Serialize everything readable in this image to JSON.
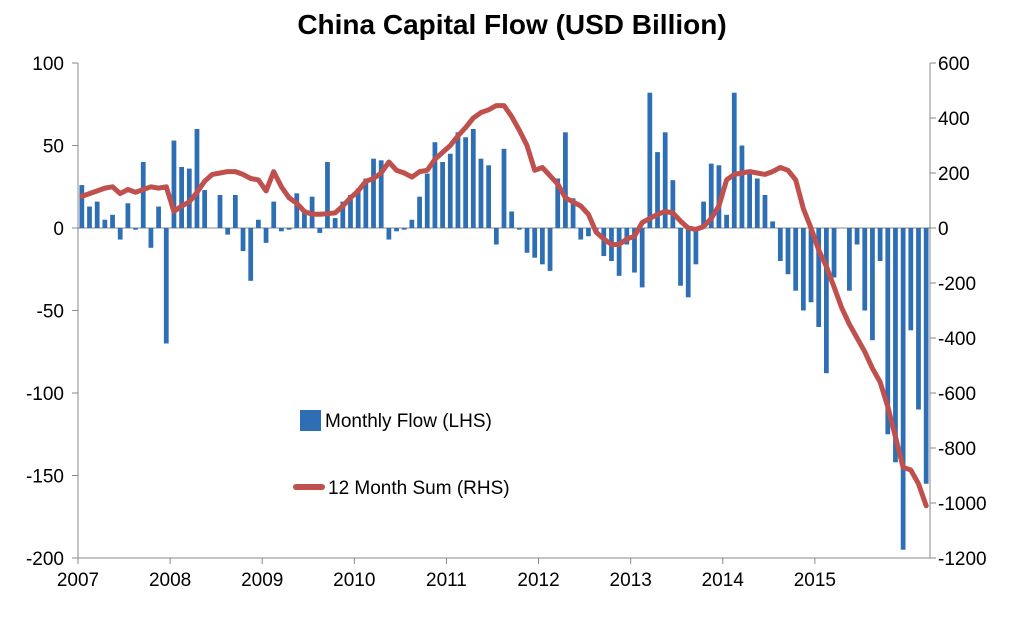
{
  "chart_data": {
    "type": "bar+line",
    "title": "China Capital Flow (USD Billion)",
    "x_labels": [
      "2007",
      "2008",
      "2009",
      "2010",
      "2011",
      "2012",
      "2013",
      "2014",
      "2015"
    ],
    "y_left": {
      "min": -200,
      "max": 100,
      "ticks": [
        "100",
        "50",
        "0",
        "-50",
        "-100",
        "-150",
        "-200"
      ],
      "tick_values": [
        100,
        50,
        0,
        -50,
        -100,
        -150,
        -200
      ]
    },
    "y_right": {
      "min": -1200,
      "max": 600,
      "ticks": [
        "600",
        "400",
        "200",
        "0",
        "-200",
        "-400",
        "-600",
        "-800",
        "-1000",
        "-1200"
      ],
      "tick_values": [
        600,
        400,
        200,
        0,
        -200,
        -400,
        -600,
        -800,
        -1000,
        -1200
      ]
    },
    "series": [
      {
        "name": "Monthly Flow (LHS)",
        "type": "bar",
        "axis": "left",
        "color": "#2E6EB5",
        "values": [
          26,
          13,
          16,
          5,
          8,
          -7,
          15,
          -1,
          40,
          -12,
          13,
          -70,
          53,
          37,
          36,
          60,
          23,
          0,
          20,
          -4,
          20,
          -14,
          -32,
          5,
          -9,
          16,
          -2,
          -1,
          21,
          10,
          19,
          -3,
          40,
          6,
          16,
          20,
          24,
          30,
          42,
          41,
          -7,
          -2,
          -1,
          5,
          19,
          33,
          52,
          40,
          45,
          58,
          55,
          60,
          42,
          38,
          -10,
          48,
          10,
          -1,
          -15,
          -18,
          -22,
          -26,
          30,
          58,
          18,
          -7,
          -5,
          -3,
          -17,
          -20,
          -29,
          -10,
          -27,
          -36,
          82,
          46,
          58,
          29,
          -35,
          -42,
          -22,
          16,
          39,
          38,
          8,
          82,
          50,
          34,
          30,
          20,
          4,
          -20,
          -28,
          -38,
          -50,
          -45,
          -60,
          -88,
          -30,
          0,
          -38,
          -10,
          -50,
          -68,
          -20,
          -125,
          -142,
          -195,
          -62,
          -110,
          -155
        ]
      },
      {
        "name": "12 Month Sum (RHS)",
        "type": "line",
        "axis": "right",
        "color": "#C0504D",
        "values": [
          115,
          125,
          135,
          145,
          150,
          125,
          140,
          130,
          140,
          150,
          145,
          150,
          60,
          80,
          95,
          130,
          170,
          195,
          200,
          205,
          205,
          195,
          180,
          175,
          135,
          205,
          150,
          110,
          90,
          60,
          50,
          50,
          52,
          55,
          80,
          110,
          135,
          170,
          180,
          200,
          240,
          210,
          200,
          185,
          205,
          210,
          250,
          275,
          300,
          335,
          365,
          400,
          420,
          430,
          445,
          445,
          405,
          355,
          300,
          210,
          220,
          190,
          160,
          110,
          95,
          80,
          50,
          -15,
          -40,
          -60,
          -60,
          -40,
          -30,
          20,
          35,
          50,
          60,
          55,
          25,
          0,
          -5,
          5,
          35,
          80,
          175,
          195,
          200,
          205,
          200,
          195,
          205,
          220,
          210,
          175,
          70,
          0,
          -80,
          -140,
          -215,
          -290,
          -350,
          -400,
          -450,
          -510,
          -560,
          -650,
          -760,
          -870,
          -880,
          -930,
          -1010
        ]
      }
    ],
    "legend": {
      "position": "center-left",
      "entries": [
        "Monthly Flow (LHS)",
        "12 Month Sum (RHS)"
      ]
    }
  }
}
